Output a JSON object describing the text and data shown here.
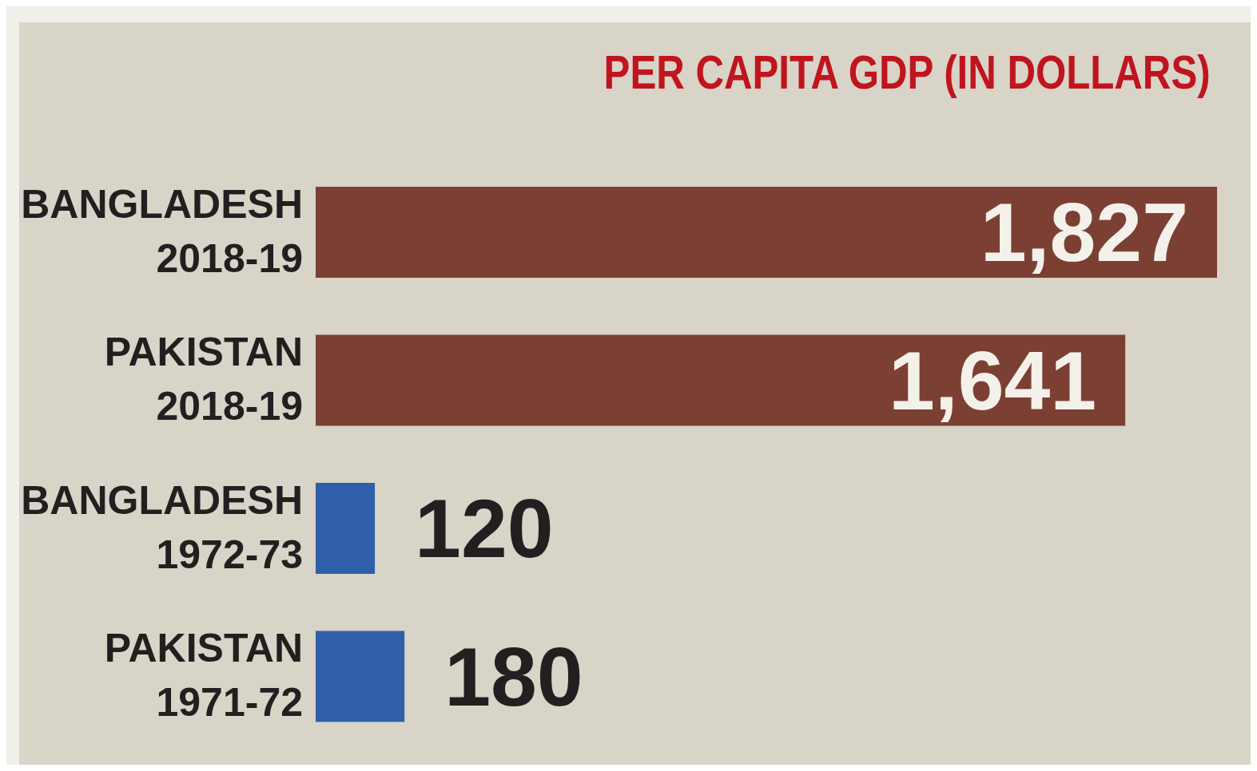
{
  "chart_data": {
    "type": "bar",
    "orientation": "horizontal",
    "title": "PER CAPITA GDP (IN DOLLARS)",
    "categories": [
      "BANGLADESH\n2018-19",
      "PAKISTAN\n2018-19",
      "BANGLADESH\n1972-73",
      "PAKISTAN\n1971-72"
    ],
    "values": [
      1827,
      1641,
      120,
      180
    ],
    "colors": [
      "#7b4033",
      "#7b4033",
      "#2f5fa9",
      "#2f5fa9"
    ],
    "value_labels": [
      "1,827",
      "1,641",
      "120",
      "180"
    ]
  }
}
